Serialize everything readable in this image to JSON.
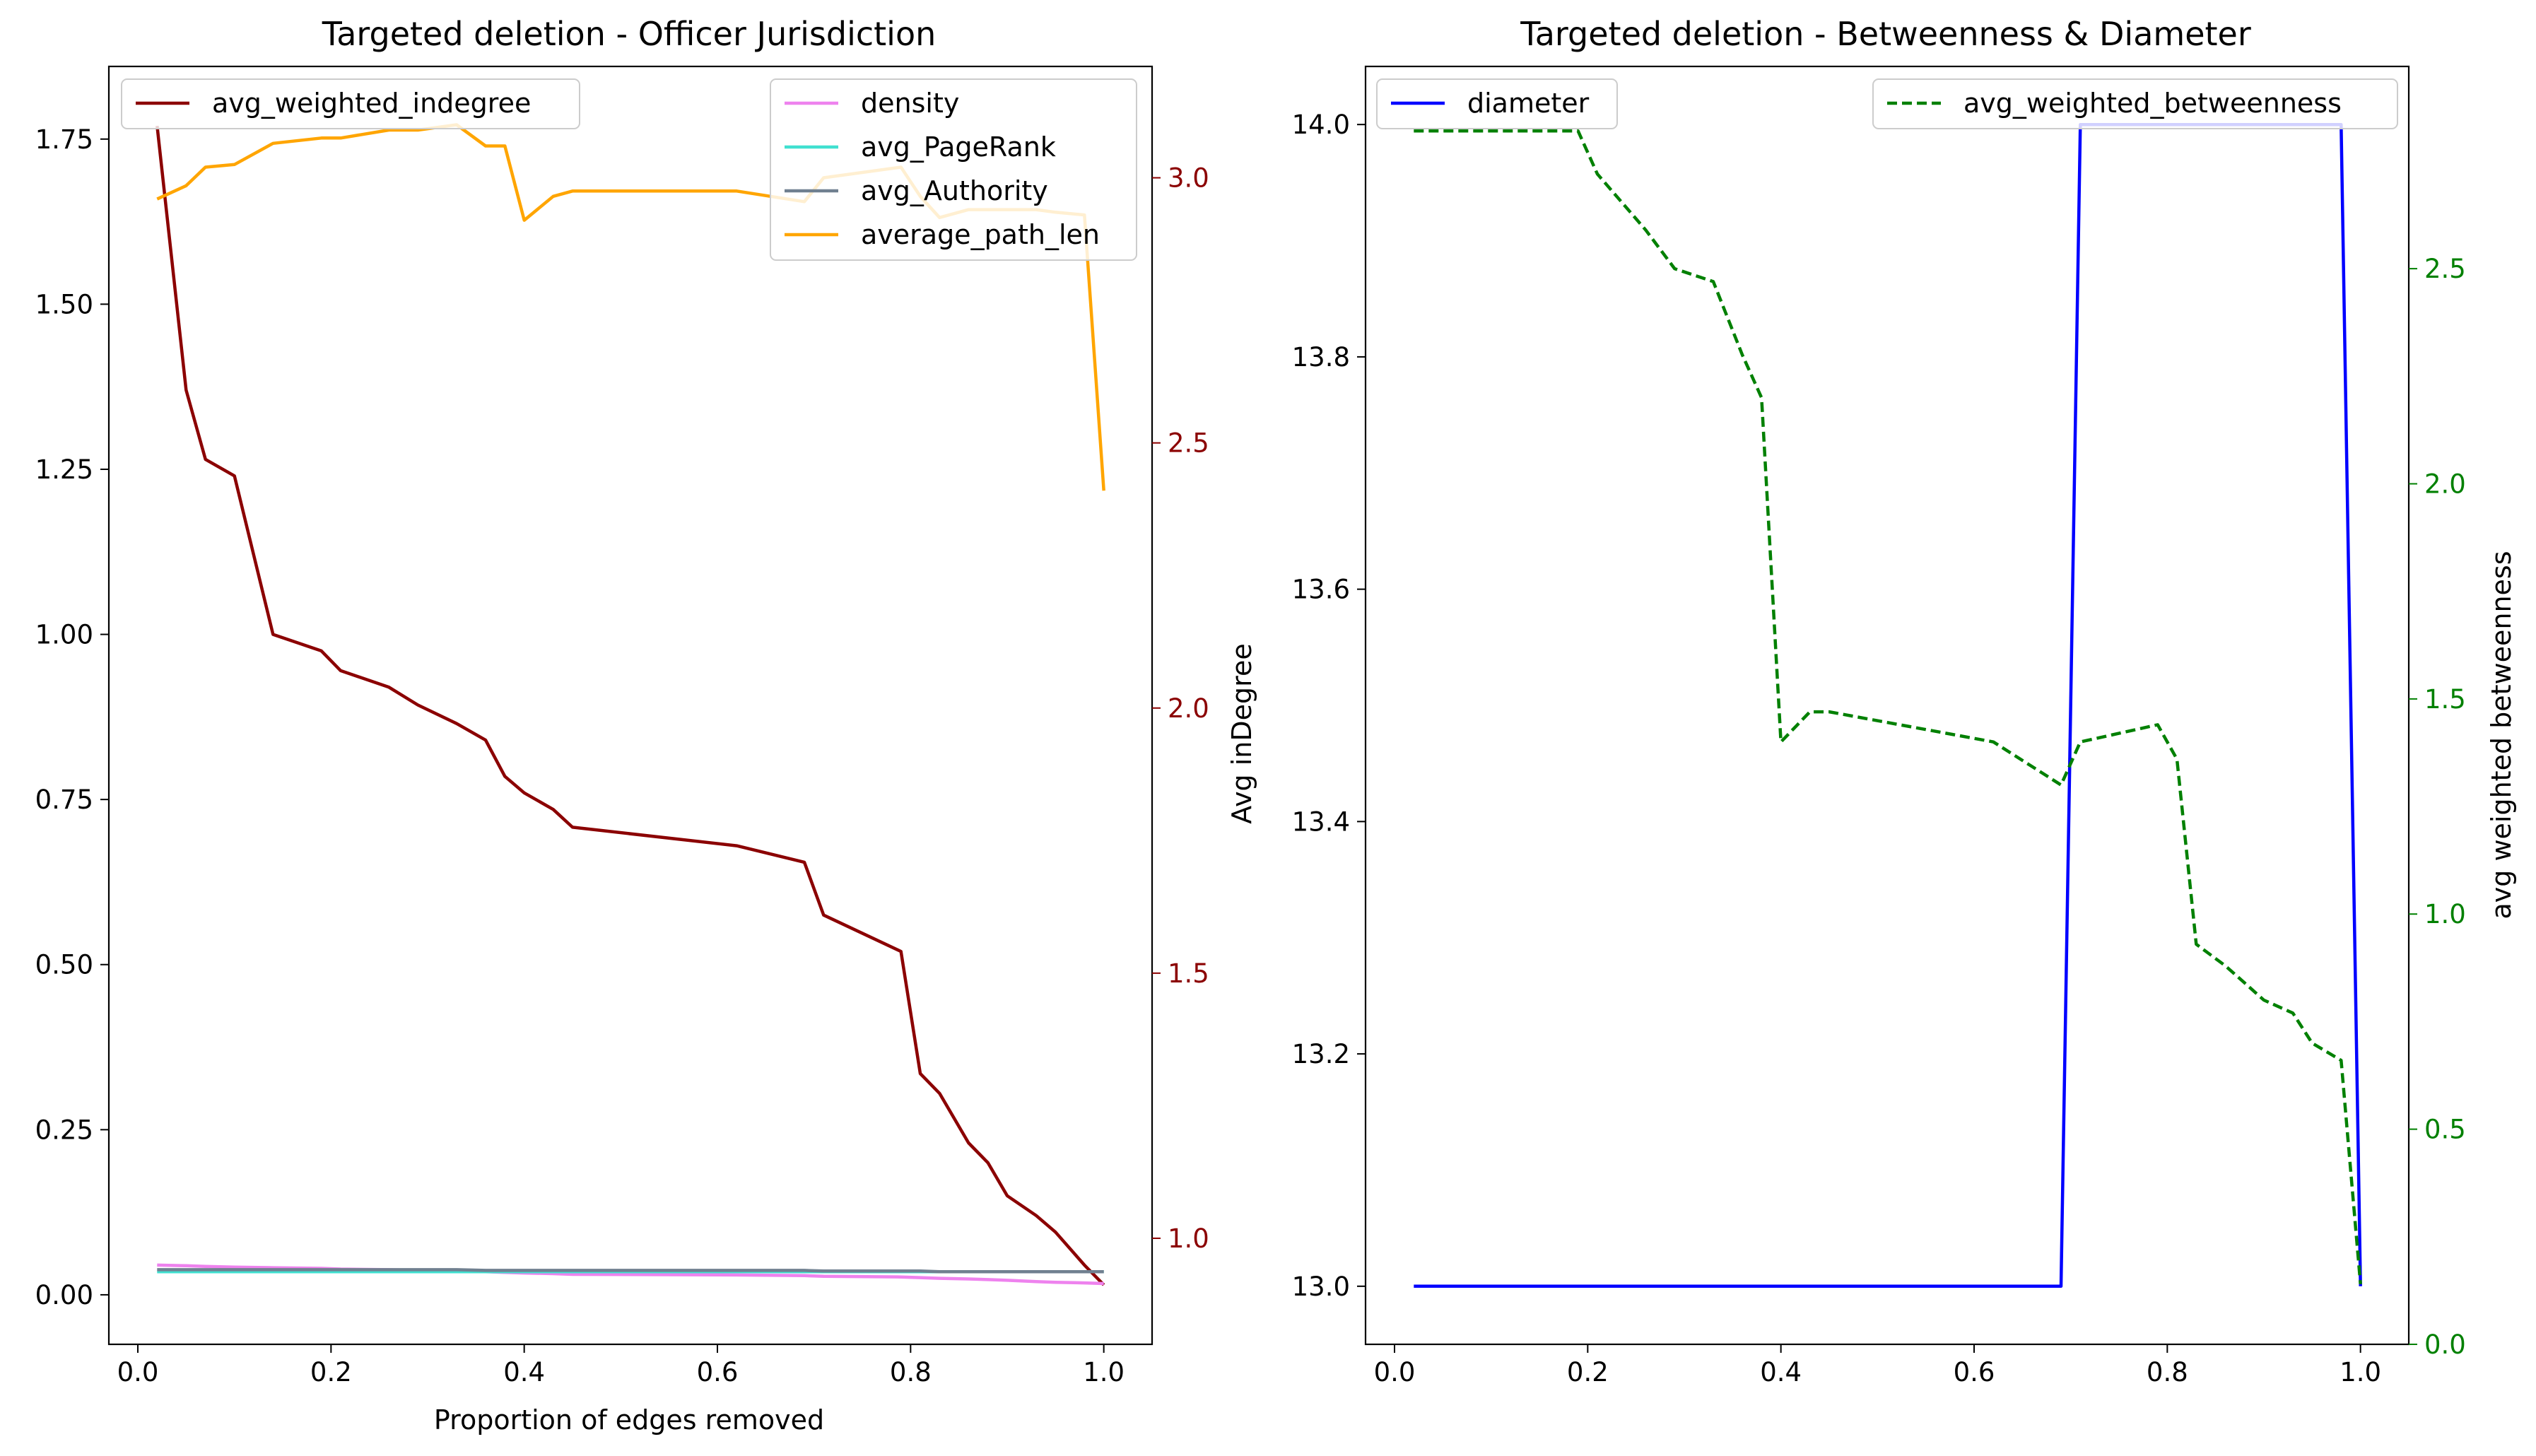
{
  "chart_data": [
    {
      "type": "line",
      "title": "Targeted deletion - Officer Jurisdiction",
      "xlabel": "Proportion of edges removed",
      "ylabel": "",
      "y2label": "Avg inDegree",
      "xlim": [
        -0.03,
        1.05
      ],
      "ylim": [
        -0.075,
        1.86
      ],
      "y2lim": [
        0.8,
        3.21
      ],
      "x_ticks": [
        "0.0",
        "0.2",
        "0.4",
        "0.6",
        "0.8",
        "1.0"
      ],
      "y_ticks": [
        "0.00",
        "0.25",
        "0.50",
        "0.75",
        "1.00",
        "1.25",
        "1.50",
        "1.75"
      ],
      "y2_ticks": [
        "1.0",
        "1.5",
        "2.0",
        "2.5",
        "3.0"
      ],
      "right_axis_color": "#8b0000",
      "legend_left": [
        "avg_weighted_indegree"
      ],
      "legend_right": [
        "density",
        "avg_PageRank",
        "avg_Authority",
        "average_path_len"
      ],
      "legend_left_placement": "upper left",
      "legend_right_placement": "upper right",
      "x": [
        0.02,
        0.05,
        0.07,
        0.1,
        0.14,
        0.19,
        0.21,
        0.26,
        0.29,
        0.33,
        0.36,
        0.38,
        0.4,
        0.43,
        0.45,
        0.62,
        0.69,
        0.71,
        0.79,
        0.81,
        0.83,
        0.86,
        0.88,
        0.9,
        0.93,
        0.95,
        0.98,
        1.0
      ],
      "series": [
        {
          "name": "avg_weighted_indegree",
          "axis": "left",
          "color": "#8b0000",
          "style": "solid",
          "values": [
            1.77,
            1.37,
            1.265,
            1.24,
            1.0,
            0.975,
            0.945,
            0.92,
            0.893,
            0.865,
            0.84,
            0.785,
            0.76,
            0.735,
            0.708,
            0.68,
            0.655,
            0.575,
            0.52,
            0.335,
            0.305,
            0.23,
            0.2,
            0.15,
            0.12,
            0.095,
            0.045,
            0.015
          ]
        },
        {
          "name": "density",
          "axis": "left",
          "color": "#ee82ee",
          "style": "solid",
          "values": [
            0.045,
            0.044,
            0.043,
            0.042,
            0.041,
            0.04,
            0.039,
            0.038,
            0.037,
            0.036,
            0.035,
            0.034,
            0.033,
            0.032,
            0.031,
            0.03,
            0.029,
            0.028,
            0.027,
            0.026,
            0.025,
            0.024,
            0.023,
            0.022,
            0.02,
            0.019,
            0.018,
            0.017
          ]
        },
        {
          "name": "avg_PageRank",
          "axis": "left",
          "color": "#40e0d0",
          "style": "solid",
          "values": [
            0.035,
            0.035,
            0.035,
            0.035,
            0.035,
            0.035,
            0.035,
            0.035,
            0.035,
            0.035,
            0.035,
            0.035,
            0.035,
            0.035,
            0.035,
            0.035,
            0.035,
            0.035,
            0.035,
            0.035,
            0.035,
            0.035,
            0.035,
            0.035,
            0.035,
            0.035,
            0.035,
            0.035
          ]
        },
        {
          "name": "avg_Authority",
          "axis": "left",
          "color": "#708090",
          "style": "solid",
          "values": [
            0.038,
            0.038,
            0.038,
            0.038,
            0.038,
            0.038,
            0.038,
            0.038,
            0.038,
            0.038,
            0.037,
            0.037,
            0.037,
            0.037,
            0.037,
            0.037,
            0.037,
            0.036,
            0.036,
            0.036,
            0.035,
            0.035,
            0.035,
            0.035,
            0.035,
            0.035,
            0.035,
            0.035
          ]
        },
        {
          "name": "average_path_len",
          "axis": "right",
          "color": "#ffa500",
          "style": "solid",
          "values": [
            2.96,
            2.985,
            3.02,
            3.025,
            3.065,
            3.075,
            3.075,
            3.09,
            3.09,
            3.1,
            3.06,
            3.06,
            2.92,
            2.965,
            2.975,
            2.975,
            2.955,
            3.0,
            3.02,
            2.965,
            2.925,
            2.94,
            2.94,
            2.94,
            2.94,
            2.935,
            2.93,
            2.41
          ]
        }
      ]
    },
    {
      "type": "line",
      "title": "Targeted deletion - Betweenness & Diameter",
      "xlabel": "",
      "ylabel": "",
      "y2label": "avg weighted betweenness",
      "xlim": [
        -0.03,
        1.05
      ],
      "ylim": [
        12.95,
        14.05
      ],
      "y2lim": [
        0.0,
        2.97
      ],
      "x_ticks": [
        "0.0",
        "0.2",
        "0.4",
        "0.6",
        "0.8",
        "1.0"
      ],
      "y_ticks": [
        "13.0",
        "13.2",
        "13.4",
        "13.6",
        "13.8",
        "14.0"
      ],
      "y2_ticks": [
        "0.0",
        "0.5",
        "1.0",
        "1.5",
        "2.0",
        "2.5"
      ],
      "right_axis_color": "#008000",
      "legend_left": [
        "diameter"
      ],
      "legend_right": [
        "avg_weighted_betweenness"
      ],
      "legend_left_placement": "upper left",
      "legend_right_placement": "upper right",
      "series": [
        {
          "name": "diameter",
          "axis": "left",
          "color": "#0000ff",
          "style": "solid",
          "x": [
            0.02,
            0.69,
            0.71,
            0.98,
            1.0
          ],
          "values": [
            13.0,
            13.0,
            14.0,
            14.0,
            13.0
          ]
        },
        {
          "name": "avg_weighted_betweenness",
          "axis": "right",
          "color": "#008000",
          "style": "dashed",
          "x": [
            0.02,
            0.05,
            0.07,
            0.1,
            0.14,
            0.19,
            0.21,
            0.26,
            0.29,
            0.33,
            0.36,
            0.38,
            0.4,
            0.43,
            0.45,
            0.62,
            0.69,
            0.71,
            0.79,
            0.81,
            0.83,
            0.86,
            0.88,
            0.9,
            0.93,
            0.95,
            0.98,
            1.0
          ],
          "values": [
            2.82,
            2.82,
            2.82,
            2.82,
            2.82,
            2.82,
            2.72,
            2.59,
            2.5,
            2.47,
            2.3,
            2.2,
            1.4,
            1.47,
            1.47,
            1.4,
            1.3,
            1.4,
            1.44,
            1.36,
            0.93,
            0.88,
            0.84,
            0.8,
            0.77,
            0.7,
            0.66,
            0.14
          ]
        }
      ]
    }
  ]
}
